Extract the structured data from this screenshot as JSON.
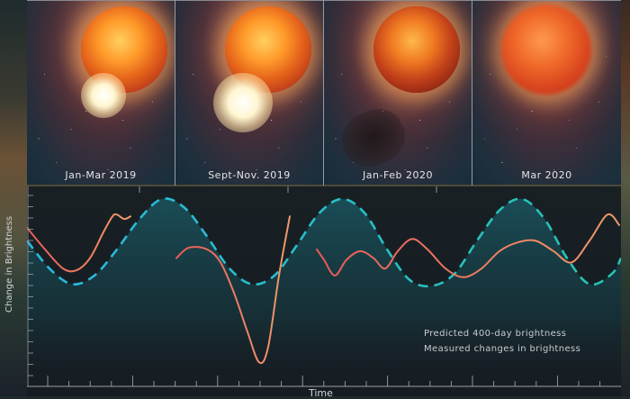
{
  "panels": [
    {
      "label": "Jan-Mar 2019",
      "event": "bright-outflow"
    },
    {
      "label": "Sept-Nov. 2019",
      "event": "hot-plasma-ejection"
    },
    {
      "label": "Jan-Feb 2020",
      "event": "dust-cloud"
    },
    {
      "label": "Mar 2020",
      "event": "return-to-normal"
    }
  ],
  "legend": {
    "predicted": "Predicted 400-day brightness",
    "measured": "Measured changes in brightness"
  },
  "colors": {
    "predicted_start": "#29b8e0",
    "predicted_end": "#27c4b0",
    "measured_start": "#e85a5a",
    "measured_end": "#f09a6a",
    "axis": "#9aa0a6"
  },
  "chart_data": {
    "type": "line",
    "title": "",
    "xlabel": "Time",
    "ylabel": "Change in Brightness",
    "grid": false,
    "legend_position": "lower-right",
    "x_range": [
      0,
      660
    ],
    "y_range": [
      0,
      200
    ],
    "series": [
      {
        "name": "Predicted 400-day brightness",
        "style": "dashed",
        "x": [
          0,
          25,
          50,
          75,
          100,
          125,
          150,
          175,
          200,
          225,
          250,
          275,
          300,
          325,
          350,
          375,
          400,
          425,
          450,
          475,
          500,
          525,
          550,
          575,
          600,
          625,
          650,
          660
        ],
        "y": [
          150,
          118,
          100,
          110,
          140,
          175,
          198,
          188,
          155,
          118,
          100,
          110,
          145,
          182,
          198,
          182,
          140,
          105,
          98,
          112,
          150,
          185,
          198,
          175,
          130,
          100,
          112,
          130
        ]
      },
      {
        "name": "Measured changes in brightness",
        "style": "solid",
        "segments": [
          {
            "x": [
              0,
              20,
              40,
              55,
              70,
              85,
              95,
              100,
              108,
              115
            ],
            "y": [
              165,
              140,
              118,
              116,
              130,
              160,
              178,
              180,
              175,
              178
            ]
          },
          {
            "x": [
              166,
              180,
              200,
              215,
              230,
              245,
              258,
              268,
              280,
              292
            ],
            "y": [
              130,
              142,
              140,
              125,
              90,
              45,
              10,
              28,
              110,
              178
            ]
          },
          {
            "x": [
              322,
              330,
              342,
              355,
              370,
              385,
              398,
              412,
              428,
              445,
              465,
              485,
              505,
              525,
              545,
              565,
              585,
              605,
              625,
              645,
              658
            ],
            "y": [
              140,
              128,
              110,
              128,
              138,
              130,
              118,
              138,
              152,
              140,
              118,
              108,
              118,
              138,
              148,
              150,
              138,
              125,
              150,
              180,
              168
            ]
          }
        ]
      }
    ]
  }
}
